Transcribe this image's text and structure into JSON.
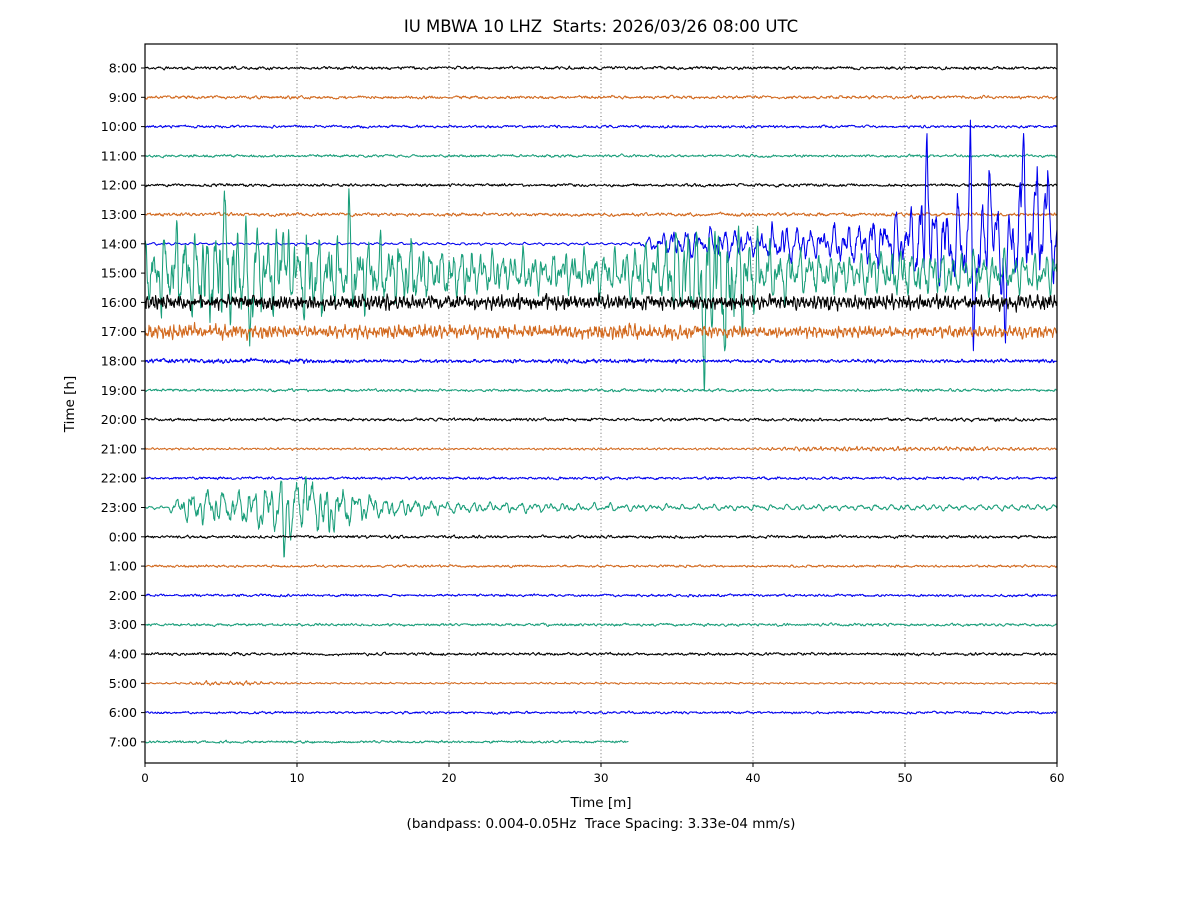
{
  "header": {
    "title": "IU MBWA 10 LHZ  Starts: 2026/03/26 08:00 UTC"
  },
  "axes": {
    "x_label": "Time [m]",
    "y_label": "Time [h]",
    "caption": "(bandpass: 0.004-0.05Hz  Trace Spacing: 3.33e-04 mm/s)"
  },
  "chart_data": {
    "type": "line",
    "variant": "helicorder-dayplot",
    "title": "IU MBWA 10 LHZ  Starts: 2026/03/26 08:00 UTC",
    "xlabel": "Time [m]",
    "ylabel": "Time [h]",
    "caption": "(bandpass: 0.004-0.05Hz  Trace Spacing: 3.33e-04 mm/s)",
    "bandpass_hz": "0.004-0.05",
    "trace_spacing": "3.33e-04 mm/s",
    "x_range": [
      0,
      60
    ],
    "x_ticks": [
      0,
      10,
      20,
      30,
      40,
      50,
      60
    ],
    "grid": "vertical-dotted",
    "minutes_per_row": 60,
    "color_cycle": [
      "#000000",
      "#D2691E",
      "#0000EE",
      "#1A9E7A"
    ],
    "rows": [
      {
        "hour": "8:00",
        "c": 0,
        "env": [
          [
            0,
            1.8
          ],
          [
            60,
            1.8
          ]
        ]
      },
      {
        "hour": "9:00",
        "c": 1,
        "env": [
          [
            0,
            1.8
          ],
          [
            60,
            1.8
          ]
        ]
      },
      {
        "hour": "10:00",
        "c": 2,
        "env": [
          [
            0,
            1.6
          ],
          [
            60,
            1.6
          ]
        ]
      },
      {
        "hour": "11:00",
        "c": 3,
        "env": [
          [
            0,
            1.6
          ],
          [
            60,
            1.6
          ]
        ]
      },
      {
        "hour": "12:00",
        "c": 0,
        "env": [
          [
            0,
            1.8
          ],
          [
            60,
            1.8
          ]
        ]
      },
      {
        "hour": "13:00",
        "c": 1,
        "env": [
          [
            0,
            2.0
          ],
          [
            60,
            2.0
          ]
        ]
      },
      {
        "hour": "14:00",
        "c": 2,
        "sw": 0.8,
        "nw": 0.3,
        "sr": 36,
        "freqs": [
          1.2,
          2.0,
          3.2,
          4.6
        ],
        "env": [
          [
            0,
            1.6
          ],
          [
            32.2,
            1.6
          ],
          [
            33,
            7
          ],
          [
            34,
            13
          ],
          [
            35,
            17
          ],
          [
            36,
            20
          ],
          [
            37,
            19
          ],
          [
            38,
            22
          ],
          [
            39,
            18
          ],
          [
            40,
            16
          ],
          [
            41,
            20
          ],
          [
            42,
            23
          ],
          [
            43,
            21
          ],
          [
            44,
            24
          ],
          [
            45,
            22
          ],
          [
            46,
            26
          ],
          [
            47,
            28
          ],
          [
            48,
            33
          ],
          [
            49,
            38
          ],
          [
            50,
            42
          ],
          [
            51,
            50
          ],
          [
            52,
            46
          ],
          [
            53,
            56
          ],
          [
            54,
            60
          ],
          [
            55,
            52
          ],
          [
            56,
            56
          ],
          [
            57,
            54
          ],
          [
            58,
            60
          ],
          [
            59,
            54
          ],
          [
            60,
            58
          ]
        ],
        "spikes": [
          {
            "m": 51.45,
            "a": 112,
            "w": 0.2
          },
          {
            "m": 54.3,
            "a": 128,
            "w": 0.16
          },
          {
            "m": 54.5,
            "a": -142,
            "w": 0.18
          },
          {
            "m": 55.6,
            "a": 96,
            "w": 0.18
          },
          {
            "m": 56.6,
            "a": -118,
            "w": 0.16
          },
          {
            "m": 57.8,
            "a": 115,
            "w": 0.2
          },
          {
            "m": 58.7,
            "a": 88,
            "w": 0.18
          },
          {
            "m": 59.4,
            "a": 95,
            "w": 0.2
          }
        ]
      },
      {
        "hour": "15:00",
        "c": 3,
        "sw": 0.8,
        "nw": 0.3,
        "sr": 36,
        "freqs": [
          1.5,
          2.4,
          3.5,
          5.0
        ],
        "env": [
          [
            0,
            38
          ],
          [
            1,
            52
          ],
          [
            2,
            58
          ],
          [
            3,
            60
          ],
          [
            4,
            62
          ],
          [
            5,
            66
          ],
          [
            6,
            58
          ],
          [
            7,
            62
          ],
          [
            8,
            55
          ],
          [
            9,
            50
          ],
          [
            10,
            56
          ],
          [
            11,
            52
          ],
          [
            12,
            48
          ],
          [
            13,
            44
          ],
          [
            14,
            50
          ],
          [
            15,
            46
          ],
          [
            16,
            42
          ],
          [
            17,
            44
          ],
          [
            18,
            38
          ],
          [
            19,
            36
          ],
          [
            20,
            33
          ],
          [
            21,
            30
          ],
          [
            22,
            28
          ],
          [
            23,
            26
          ],
          [
            24,
            25
          ],
          [
            25,
            27
          ],
          [
            26,
            25
          ],
          [
            27,
            28
          ],
          [
            28,
            26
          ],
          [
            29,
            28
          ],
          [
            30,
            30
          ],
          [
            31,
            28
          ],
          [
            32,
            32
          ],
          [
            33,
            34
          ],
          [
            34,
            40
          ],
          [
            35,
            52
          ],
          [
            36,
            70
          ],
          [
            37,
            78
          ],
          [
            38,
            76
          ],
          [
            39,
            66
          ],
          [
            40,
            50
          ],
          [
            41,
            38
          ],
          [
            42,
            34
          ],
          [
            43,
            30
          ],
          [
            44,
            28
          ],
          [
            46,
            26
          ],
          [
            48,
            28
          ],
          [
            50,
            30
          ],
          [
            52,
            28
          ],
          [
            54,
            26
          ],
          [
            56,
            25
          ],
          [
            58,
            26
          ],
          [
            60,
            28
          ]
        ],
        "spikes": [
          {
            "m": 5.2,
            "a": 78,
            "w": 0.15
          },
          {
            "m": 6.9,
            "a": -62,
            "w": 0.15
          },
          {
            "m": 9.1,
            "a": 70,
            "w": 0.15
          },
          {
            "m": 13.4,
            "a": 66,
            "w": 0.14
          },
          {
            "m": 36.8,
            "a": -88,
            "w": 0.18
          },
          {
            "m": 38.2,
            "a": -80,
            "w": 0.18
          }
        ]
      },
      {
        "hour": "16:00",
        "c": 0,
        "sw": 0.55,
        "nw": 0.6,
        "sr": 40,
        "freqs": [
          3.5,
          5.5,
          8.0,
          11.5
        ],
        "env": [
          [
            0,
            10
          ],
          [
            4,
            9
          ],
          [
            8,
            10.5
          ],
          [
            12,
            9.5
          ],
          [
            16,
            10.5
          ],
          [
            20,
            9
          ],
          [
            24,
            10
          ],
          [
            28,
            10.5
          ],
          [
            32,
            9.5
          ],
          [
            36,
            10
          ],
          [
            40,
            9
          ],
          [
            44,
            9.5
          ],
          [
            48,
            10
          ],
          [
            52,
            9
          ],
          [
            56,
            9.5
          ],
          [
            60,
            10.5
          ]
        ]
      },
      {
        "hour": "17:00",
        "c": 1,
        "sw": 0.6,
        "nw": 0.5,
        "sr": 38,
        "freqs": [
          3.0,
          5.0,
          7.5,
          10.5
        ],
        "env": [
          [
            0,
            12
          ],
          [
            2,
            10
          ],
          [
            4,
            9
          ],
          [
            6,
            10
          ],
          [
            8,
            9
          ],
          [
            10,
            8.5
          ],
          [
            12,
            9
          ],
          [
            14,
            10
          ],
          [
            16,
            9
          ],
          [
            18,
            11
          ],
          [
            20,
            12
          ],
          [
            22,
            9
          ],
          [
            24,
            8
          ],
          [
            26,
            8.5
          ],
          [
            28,
            9
          ],
          [
            30,
            10.5
          ],
          [
            32,
            12
          ],
          [
            34,
            10
          ],
          [
            36,
            8.5
          ],
          [
            38,
            8
          ],
          [
            42,
            7.5
          ],
          [
            46,
            8
          ],
          [
            50,
            8.5
          ],
          [
            54,
            8
          ],
          [
            58,
            8.5
          ],
          [
            60,
            8
          ]
        ]
      },
      {
        "hour": "18:00",
        "c": 2,
        "sw": 0.35,
        "nw": 0.9,
        "sr": 34,
        "freqs": [
          3.0,
          5.0,
          7.0,
          10.0
        ],
        "env": [
          [
            0,
            3
          ],
          [
            14,
            2.8
          ],
          [
            16,
            2
          ],
          [
            26,
            2.2
          ],
          [
            28,
            3
          ],
          [
            30,
            2.6
          ],
          [
            33,
            2.4
          ],
          [
            40,
            2
          ],
          [
            60,
            2.2
          ]
        ]
      },
      {
        "hour": "19:00",
        "c": 3,
        "env": [
          [
            0,
            1.5
          ],
          [
            36,
            1.7
          ],
          [
            38,
            2
          ],
          [
            40,
            1.5
          ],
          [
            50.4,
            1.5
          ],
          [
            51,
            2.8
          ],
          [
            51.8,
            1.5
          ],
          [
            60,
            1.5
          ]
        ]
      },
      {
        "hour": "20:00",
        "c": 0,
        "env": [
          [
            0,
            1.8
          ],
          [
            55.4,
            1.8
          ],
          [
            56,
            3
          ],
          [
            56.7,
            1.8
          ],
          [
            60,
            1.8
          ]
        ]
      },
      {
        "hour": "21:00",
        "c": 1,
        "sw": 0.7,
        "nw": 0.4,
        "sr": 32,
        "freqs": [
          2.5,
          4.0,
          6.0,
          9.0
        ],
        "env": [
          [
            0,
            1.4
          ],
          [
            40,
            1.4
          ],
          [
            42,
            2.6
          ],
          [
            44,
            3
          ],
          [
            47,
            2.8
          ],
          [
            50,
            3
          ],
          [
            53,
            3
          ],
          [
            56,
            2.4
          ],
          [
            60,
            1.9
          ]
        ]
      },
      {
        "hour": "22:00",
        "c": 2,
        "env": [
          [
            0,
            1.6
          ],
          [
            60,
            1.6
          ]
        ]
      },
      {
        "hour": "23:00",
        "c": 3,
        "sw": 0.8,
        "nw": 0.3,
        "sr": 36,
        "freqs": [
          1.1,
          1.8,
          2.7,
          3.9
        ],
        "env": [
          [
            0,
            2
          ],
          [
            1.5,
            2.5
          ],
          [
            2,
            10
          ],
          [
            3,
            26
          ],
          [
            4,
            25
          ],
          [
            5,
            27
          ],
          [
            6,
            24
          ],
          [
            7,
            28
          ],
          [
            8,
            30
          ],
          [
            9,
            36
          ],
          [
            10,
            42
          ],
          [
            11,
            38
          ],
          [
            12,
            40
          ],
          [
            13,
            30
          ],
          [
            14,
            22
          ],
          [
            15,
            18
          ],
          [
            16,
            14
          ],
          [
            17,
            12
          ],
          [
            18,
            10
          ],
          [
            20,
            8
          ],
          [
            22,
            7
          ],
          [
            24,
            6.5
          ],
          [
            26,
            6
          ],
          [
            28,
            5.5
          ],
          [
            30,
            5
          ],
          [
            34,
            4.5
          ],
          [
            38,
            4
          ],
          [
            44,
            4
          ],
          [
            50,
            4
          ],
          [
            56,
            3.8
          ],
          [
            60,
            4
          ]
        ],
        "spikes": [
          {
            "m": 9.15,
            "a": -46,
            "w": 0.14
          },
          {
            "m": 10.6,
            "a": 44,
            "w": 0.14
          },
          {
            "m": 12.1,
            "a": -40,
            "w": 0.13
          }
        ]
      },
      {
        "hour": "0:00",
        "c": 0,
        "env": [
          [
            0,
            1.8
          ],
          [
            60,
            1.8
          ]
        ]
      },
      {
        "hour": "1:00",
        "c": 1,
        "env": [
          [
            0,
            1.5
          ],
          [
            60,
            1.5
          ]
        ]
      },
      {
        "hour": "2:00",
        "c": 2,
        "env": [
          [
            0,
            1.5
          ],
          [
            60,
            1.5
          ]
        ]
      },
      {
        "hour": "3:00",
        "c": 3,
        "env": [
          [
            0,
            1.6
          ],
          [
            60,
            1.6
          ]
        ]
      },
      {
        "hour": "4:00",
        "c": 0,
        "env": [
          [
            0,
            1.7
          ],
          [
            60,
            1.7
          ]
        ]
      },
      {
        "hour": "5:00",
        "c": 1,
        "sw": 0.7,
        "nw": 0.4,
        "sr": 32,
        "freqs": [
          2.0,
          3.2,
          4.6,
          6.5
        ],
        "env": [
          [
            0,
            1.2
          ],
          [
            2.8,
            1.3
          ],
          [
            3.2,
            2.8
          ],
          [
            4.2,
            3.4
          ],
          [
            5.2,
            2.8
          ],
          [
            6.2,
            3.6
          ],
          [
            7.2,
            2.8
          ],
          [
            8.2,
            2.2
          ],
          [
            9.2,
            1.6
          ],
          [
            10,
            1.2
          ],
          [
            60,
            1.2
          ]
        ]
      },
      {
        "hour": "6:00",
        "c": 2,
        "env": [
          [
            0,
            1.5
          ],
          [
            60,
            1.5
          ]
        ]
      },
      {
        "hour": "7:00",
        "c": 3,
        "end": 31.8,
        "env": [
          [
            0,
            1.5
          ],
          [
            31.8,
            1.5
          ]
        ]
      }
    ]
  }
}
